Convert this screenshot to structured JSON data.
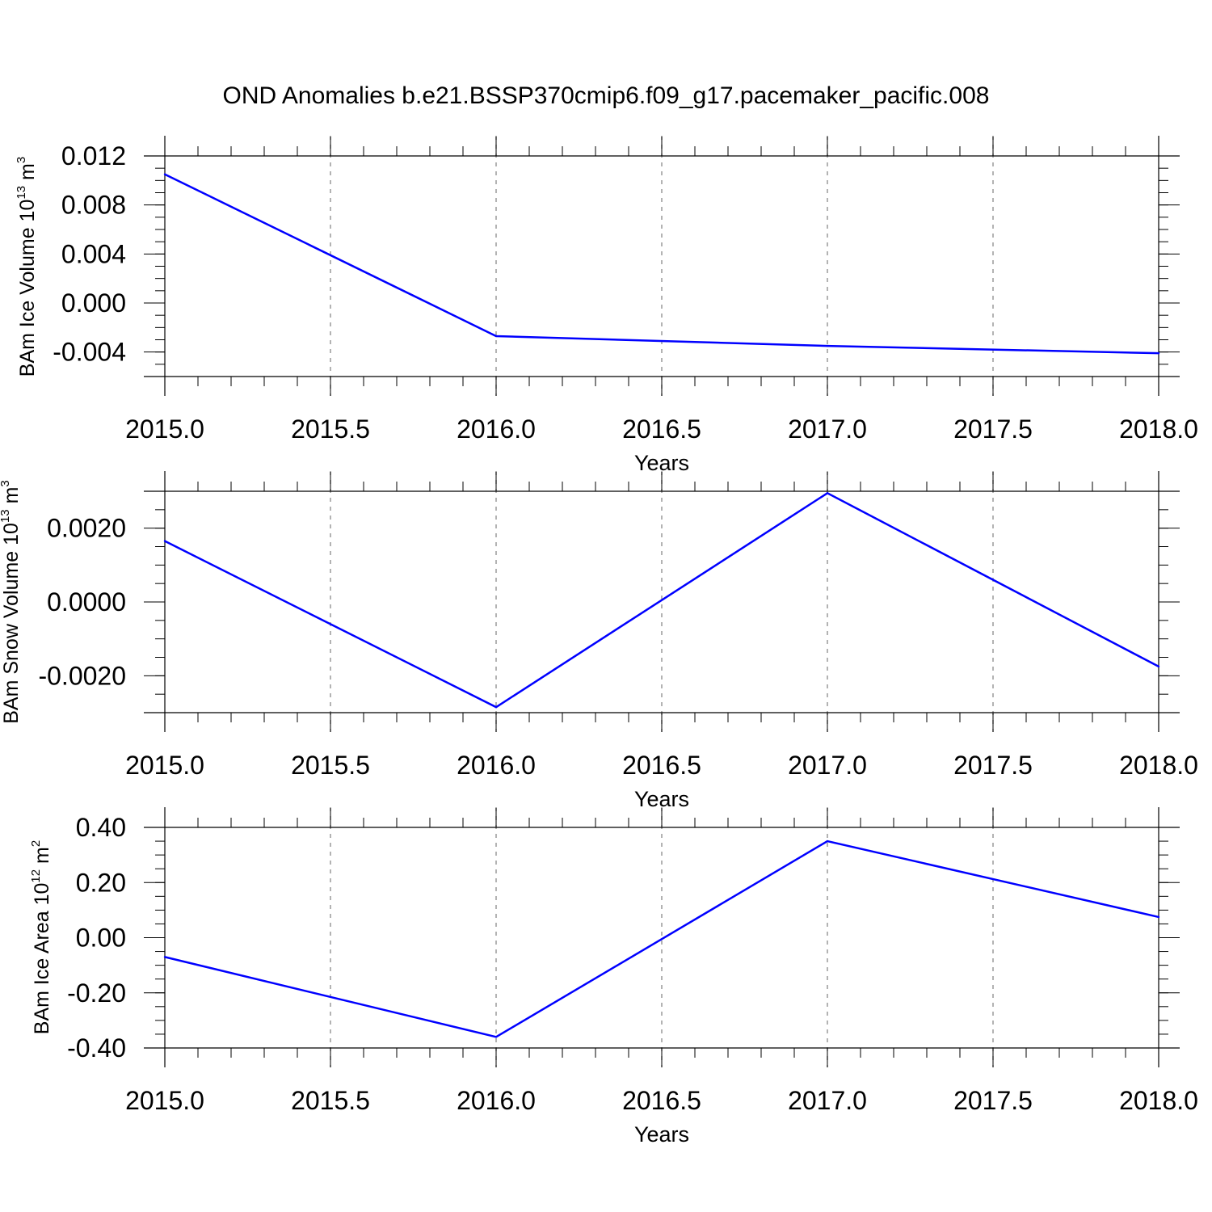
{
  "title": "OND Anomalies b.e21.BSSP370cmip6.f09_g17.pacemaker_pacific.008",
  "line_color": "#0000ff",
  "chart_data": [
    {
      "type": "line",
      "xlabel": "Years",
      "ylabel": "BAm Ice Volume 10",
      "ylabel_sup": "13",
      "ylabel_unit": " m",
      "ylabel_unit_sup": "3",
      "xlim": [
        2015.0,
        2018.0
      ],
      "ylim": [
        -0.006,
        0.012
      ],
      "xticks": [
        "2015.0",
        "2015.5",
        "2016.0",
        "2016.5",
        "2017.0",
        "2017.5",
        "2018.0"
      ],
      "yticks": [
        "0.012",
        "0.008",
        "0.004",
        "0.000",
        "-0.004"
      ],
      "ytick_values": [
        0.012,
        0.008,
        0.004,
        0.0,
        -0.004
      ],
      "ymin_tick": 0.001,
      "x": [
        2015.0,
        2016.0,
        2017.0,
        2018.0
      ],
      "y": [
        0.0105,
        -0.0027,
        -0.0035,
        -0.0041
      ],
      "grid": "vertical dashed"
    },
    {
      "type": "line",
      "xlabel": "Years",
      "ylabel": "BAm Snow Volume 10",
      "ylabel_sup": "13",
      "ylabel_unit": " m",
      "ylabel_unit_sup": "3",
      "xlim": [
        2015.0,
        2018.0
      ],
      "ylim": [
        -0.003,
        0.003
      ],
      "xticks": [
        "2015.0",
        "2015.5",
        "2016.0",
        "2016.5",
        "2017.0",
        "2017.5",
        "2018.0"
      ],
      "yticks": [
        "0.0020",
        "0.0000",
        "-0.0020"
      ],
      "ytick_values": [
        0.002,
        0.0,
        -0.002
      ],
      "ymin_tick": 0.0005,
      "x": [
        2015.0,
        2016.0,
        2017.0,
        2018.0
      ],
      "y": [
        0.00165,
        -0.00285,
        0.00295,
        -0.00175
      ],
      "grid": "vertical dashed"
    },
    {
      "type": "line",
      "xlabel": "Years",
      "ylabel": "BAm Ice Area 10",
      "ylabel_sup": "12",
      "ylabel_unit": " m",
      "ylabel_unit_sup": "2",
      "xlim": [
        2015.0,
        2018.0
      ],
      "ylim": [
        -0.4,
        0.4
      ],
      "xticks": [
        "2015.0",
        "2015.5",
        "2016.0",
        "2016.5",
        "2017.0",
        "2017.5",
        "2018.0"
      ],
      "yticks": [
        "0.40",
        "0.20",
        "0.00",
        "-0.20",
        "-0.40"
      ],
      "ytick_values": [
        0.4,
        0.2,
        0.0,
        -0.2,
        -0.4
      ],
      "ymin_tick": 0.05,
      "x": [
        2015.0,
        2016.0,
        2017.0,
        2018.0
      ],
      "y": [
        -0.07,
        -0.36,
        0.35,
        0.075
      ],
      "grid": "vertical dashed"
    }
  ]
}
